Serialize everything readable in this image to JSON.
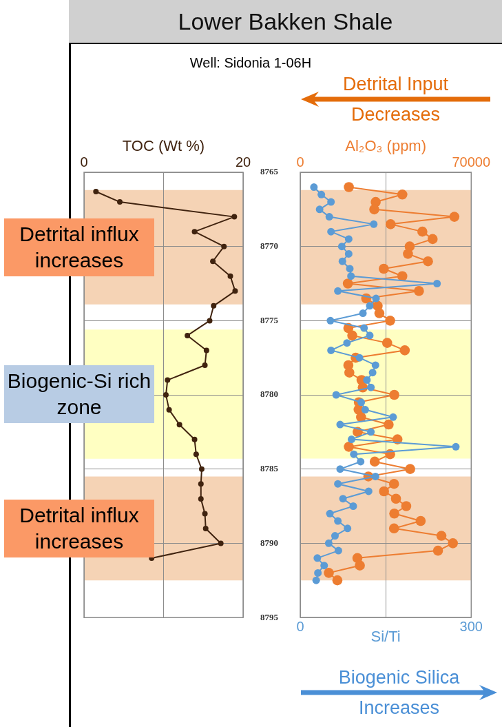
{
  "chart_data": [
    {
      "type": "line",
      "title": "Lower Bakken Shale",
      "subtitle": "Well: Sidonia 1-06H",
      "xlabel": "TOC (Wt %)",
      "xlim": [
        0,
        20
      ],
      "xticks": [
        0,
        {
          "value": 10,
          "label": null
        },
        20
      ],
      "ylim": [
        8795,
        8765
      ],
      "yticks": [
        8765,
        8770,
        8775,
        8780,
        8785,
        8790,
        8795
      ],
      "grid": true,
      "marker": "circle",
      "line_style": "solid",
      "series": [
        {
          "x": [
            1.5,
            4.5,
            18.9,
            13.9,
            17.6,
            16.2,
            18.4,
            19.0,
            16.3,
            15.8,
            13.0,
            15.4,
            15.2,
            10.5,
            10.3,
            10.7,
            12.0,
            13.9,
            14.1,
            14.8,
            14.7,
            14.7,
            15.2,
            15.3,
            17.2,
            8.5
          ],
          "values": [
            8766.3,
            8767,
            8768,
            8769,
            8770,
            8771,
            8772,
            8773,
            8774,
            8775,
            8776,
            8777,
            8778,
            8779,
            8780,
            8781,
            8782,
            8783,
            8784,
            8785,
            8786,
            8787,
            8788,
            8789,
            8790,
            8791
          ],
          "color": "#40230f"
        }
      ],
      "bands": [
        {
          "axis": "y",
          "from": 8766.2,
          "to": 8773.9,
          "label": "Detrital influx increases",
          "color": "#f5d3b5"
        },
        {
          "axis": "y",
          "from": 8775.6,
          "to": 8784.3,
          "label": "Biogenic-Si rich zone",
          "color": "#ffffc2"
        },
        {
          "axis": "y",
          "from": 8785.5,
          "to": 8792.5,
          "label": "Detrital influx increases",
          "color": "#f5d3b5"
        }
      ]
    },
    {
      "type": "line",
      "xlabel": "Si/Ti",
      "x2label": "Al₂O₃ (ppm)",
      "xlim": [
        0,
        300
      ],
      "xticks": [
        0,
        {
          "value": 150,
          "label": null
        },
        300
      ],
      "x2lim": [
        0,
        70000
      ],
      "x2ticks": [
        0,
        70000
      ],
      "ylim": [
        8795,
        8765
      ],
      "yticks": [
        8765,
        8770,
        8775,
        8780,
        8785,
        8790,
        8795
      ],
      "tick_labels": "x",
      "grid": true,
      "marker": "circle",
      "line_style": "solid",
      "series": [
        {
          "color": "#5b9bd5",
          "x": [
            24,
            37,
            54,
            34,
            51,
            129,
            54,
            85,
            73,
            85,
            74,
            87,
            89,
            240,
            66,
            133,
            122,
            110,
            53,
            112,
            122,
            82,
            54,
            104,
            132,
            127,
            117,
            124,
            63,
            107,
            114,
            163,
            70,
            124,
            90,
            273,
            94,
            106,
            70,
            132,
            66,
            120,
            75,
            93,
            52,
            66,
            83,
            61,
            50,
            67,
            30,
            42,
            31,
            28
          ],
          "values": [
            8766,
            8766.5,
            8767,
            8767.5,
            8768,
            8768.5,
            8769,
            8769.5,
            8770,
            8770.5,
            8771,
            8771.5,
            8772,
            8772.5,
            8773,
            8773.5,
            8774,
            8774.5,
            8775,
            8775.5,
            8776,
            8776.5,
            8777,
            8777.5,
            8778,
            8778.5,
            8779,
            8779.5,
            8780,
            8780.5,
            8781,
            8781.5,
            8782,
            8782.5,
            8783,
            8783.5,
            8784,
            8784.5,
            8785,
            8785.5,
            8786,
            8786.5,
            8787,
            8787.5,
            8788,
            8788.5,
            8789,
            8789.5,
            8790,
            8790.5,
            8791,
            8791.5,
            8792,
            8792.5
          ]
        },
        {
          "color": "#ed7d31",
          "axis": "x2",
          "x": [
            19900,
            41800,
            30900,
            30300,
            63100,
            37000,
            50000,
            54200,
            44800,
            44100,
            52300,
            34200,
            41800,
            19500,
            48600,
            27000,
            31700,
            32400,
            36800,
            19700,
            21300,
            35600,
            42800,
            22700,
            19700,
            20100,
            25100,
            25600,
            38500,
            24000,
            23900,
            24900,
            36200,
            23500,
            39800,
            19900,
            36800,
            30500,
            45000,
            27900,
            38400,
            34300,
            39200,
            43400,
            38500,
            49300,
            38400,
            57800,
            62500,
            56400,
            23400,
            24400,
            11700,
            15200
          ],
          "values": [
            8766,
            8766.5,
            8767,
            8767.5,
            8768,
            8768.5,
            8769,
            8769.5,
            8770,
            8770.5,
            8771,
            8771.5,
            8772,
            8772.5,
            8773,
            8773.5,
            8774,
            8774.5,
            8775,
            8775.5,
            8776,
            8776.5,
            8777,
            8777.5,
            8778,
            8778.5,
            8779,
            8779.5,
            8780,
            8780.5,
            8781,
            8781.5,
            8782,
            8782.5,
            8783,
            8783.5,
            8784,
            8784.5,
            8785,
            8785.5,
            8786,
            8786.5,
            8787,
            8787.5,
            8788,
            8788.5,
            8789,
            8789.5,
            8790,
            8790.5,
            8791,
            8791.5,
            8792,
            8792.5
          ]
        }
      ],
      "bands": [
        {
          "axis": "y",
          "from": 8766.2,
          "to": 8773.9,
          "color": "#f5d3b5"
        },
        {
          "axis": "y",
          "from": 8775.6,
          "to": 8784.3,
          "color": "#ffffc2"
        },
        {
          "axis": "y",
          "from": 8785.5,
          "to": 8792.5,
          "color": "#f5d3b5"
        }
      ],
      "annotations": [
        "Detrital Input Decreases",
        "Biogenic Silica Increases"
      ]
    }
  ]
}
